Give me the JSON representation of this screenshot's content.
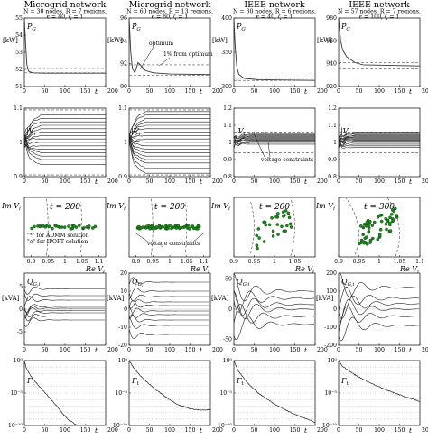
{
  "columns": [
    {
      "title": "Microgrid network",
      "subtitle": "N = 30 nodes, R = 7 regions",
      "subtitle2": "ϵ = 80, ζ = 1"
    },
    {
      "title": "Microgrid network",
      "subtitle": "N = 60 nodes, R = 13 regions",
      "subtitle2": "ϵ = 80, ζ = 1"
    },
    {
      "title": "IEEE network",
      "subtitle": "N = 30 nodes, R = 6 regions",
      "subtitle2": "ϵ = 40, ζ = 1"
    },
    {
      "title": "IEEE network",
      "subtitle": "N = 57 nodes, R = 7 regions",
      "subtitle2": "ϵ = 100, ζ = 1"
    }
  ],
  "row_labels": {
    "pg": "PG",
    "pg_unit": "[kW]",
    "vi": "|Vi|",
    "im": "Im Vi",
    "re": "Re Vi",
    "qg": "QG,i",
    "qg_unit": "[kVA]",
    "gamma": "Γt",
    "t": "t"
  },
  "annotations": {
    "optimum": "optimum",
    "one_percent": "1% from optimum",
    "voltage_constraints": "voltage constraints",
    "admm_line": "\"*\" for ADMM solution",
    "ipopt_line": "\"o\" for IPOPT solution",
    "t200": "t = 200",
    "t300": "t = 300"
  },
  "chart_data": [
    {
      "type": "line",
      "row": "PG",
      "col": 1,
      "xlim": [
        0,
        200
      ],
      "ylim": [
        51,
        55
      ],
      "x_ticks": [
        0,
        50,
        100,
        150,
        200
      ],
      "y_ticks": [
        51,
        52,
        53,
        54,
        55
      ],
      "series": [
        {
          "values": [
            [
              0,
              55
            ],
            [
              3,
              53.5
            ],
            [
              6,
              52.3
            ],
            [
              10,
              51.9
            ],
            [
              20,
              51.8
            ],
            [
              50,
              51.78
            ],
            [
              200,
              51.78
            ]
          ]
        }
      ],
      "reference_lines": [
        51.8,
        52.05
      ]
    },
    {
      "type": "line",
      "row": "PG",
      "col": 2,
      "xlim": [
        0,
        200
      ],
      "ylim": [
        90,
        96
      ],
      "x_ticks": [
        0,
        50,
        100,
        150,
        200
      ],
      "y_ticks": [
        90,
        92,
        94,
        96
      ],
      "series": [
        {
          "values": [
            [
              0,
              96
            ],
            [
              4,
              93
            ],
            [
              8,
              91.6
            ],
            [
              14,
              91.2
            ],
            [
              22,
              92.1
            ],
            [
              30,
              91.8
            ],
            [
              40,
              91.4
            ],
            [
              60,
              91.2
            ],
            [
              100,
              91.1
            ],
            [
              200,
              91.05
            ]
          ]
        }
      ],
      "reference_lines": [
        91.0,
        91.9
      ]
    },
    {
      "type": "line",
      "row": "PG",
      "col": 3,
      "xlim": [
        0,
        200
      ],
      "ylim": [
        300,
        400
      ],
      "x_ticks": [
        0,
        50,
        100,
        150,
        200
      ],
      "y_ticks": [
        300,
        350,
        400
      ],
      "series": [
        {
          "values": [
            [
              0,
              400
            ],
            [
              3,
              360
            ],
            [
              7,
              330
            ],
            [
              12,
              318
            ],
            [
              25,
              312
            ],
            [
              60,
              310
            ],
            [
              200,
              309
            ]
          ]
        }
      ],
      "reference_lines": [
        309,
        312
      ]
    },
    {
      "type": "line",
      "row": "PG",
      "col": 4,
      "xlim": [
        0,
        200
      ],
      "ylim": [
        920,
        980
      ],
      "x_ticks": [
        0,
        50,
        100,
        150,
        200
      ],
      "y_ticks": [
        920,
        940,
        960,
        980
      ],
      "series": [
        {
          "values": [
            [
              0,
              980
            ],
            [
              5,
              960
            ],
            [
              10,
              952
            ],
            [
              20,
              946
            ],
            [
              40,
              941
            ],
            [
              60,
              939
            ],
            [
              200,
              938
            ]
          ]
        }
      ],
      "reference_lines": [
        936,
        941
      ]
    },
    {
      "type": "line",
      "row": "Vi",
      "col": 1,
      "xlim": [
        0,
        200
      ],
      "ylim": [
        0.9,
        1.1
      ],
      "x_ticks": [
        0,
        50,
        100,
        150,
        200
      ],
      "y_ticks": [
        0.9,
        1,
        1.1
      ],
      "series_finals": [
        0.935,
        0.95,
        0.96,
        0.97,
        0.98,
        0.99,
        1.0,
        1.01,
        1.02,
        1.03,
        1.04,
        1.05,
        1.06,
        1.07,
        1.08
      ],
      "constraints": [
        0.905,
        1.095
      ]
    },
    {
      "type": "line",
      "row": "Vi",
      "col": 2,
      "xlim": [
        0,
        200
      ],
      "ylim": [
        0.9,
        1.1
      ],
      "x_ticks": [
        0,
        50,
        100,
        150,
        200
      ],
      "y_ticks": [
        0.9,
        1,
        1.1
      ],
      "series_finals": [
        0.91,
        0.925,
        0.94,
        0.95,
        0.96,
        0.97,
        0.98,
        0.99,
        1.0,
        1.01,
        1.02,
        1.03,
        1.04,
        1.05,
        1.06,
        1.07,
        1.08,
        1.09
      ],
      "constraints": [
        0.905,
        1.095
      ]
    },
    {
      "type": "line",
      "row": "Vi",
      "col": 3,
      "xlim": [
        0,
        200
      ],
      "ylim": [
        0.8,
        1.2
      ],
      "x_ticks": [
        0,
        50,
        100,
        150,
        200
      ],
      "y_ticks": [
        0.8,
        0.9,
        1,
        1.1,
        1.2
      ],
      "series_finals": [
        0.99,
        1.0,
        1.005,
        1.01,
        1.015,
        1.02,
        1.025,
        1.03,
        1.035,
        1.04,
        1.045,
        1.05
      ],
      "constraints": [
        0.94,
        1.06
      ]
    },
    {
      "type": "line",
      "row": "Vi",
      "col": 4,
      "xlim": [
        0,
        200
      ],
      "ylim": [
        0.8,
        1.2
      ],
      "x_ticks": [
        0,
        50,
        100,
        150,
        200
      ],
      "y_ticks": [
        0.8,
        0.9,
        1,
        1.1,
        1.2
      ],
      "series_finals": [
        0.97,
        0.98,
        0.99,
        1.0,
        1.005,
        1.01,
        1.015,
        1.02,
        1.025,
        1.03,
        1.035,
        1.04,
        1.045,
        1.05,
        1.055,
        1.06
      ],
      "constraints": [
        0.94,
        1.06
      ]
    },
    {
      "type": "scatter",
      "row": "ImVi",
      "col": 1,
      "xlim": [
        0.88,
        1.12
      ],
      "ylim": [
        -0.1,
        0.1
      ],
      "x_ticks": [
        0.9,
        0.95,
        1,
        1.05,
        1.1
      ],
      "x_tick_labels": [
        "0.9",
        "0.95",
        "1",
        "1.05",
        "1.1"
      ]
    },
    {
      "type": "scatter",
      "row": "ImVi",
      "col": 2,
      "xlim": [
        0.88,
        1.12
      ],
      "ylim": [
        -0.1,
        0.1
      ],
      "x_ticks": [
        0.9,
        0.95,
        1,
        1.05,
        1.1
      ],
      "x_tick_labels": [
        "0.9",
        "0.95",
        "1",
        "1.05",
        "1.1"
      ]
    },
    {
      "type": "scatter",
      "row": "ImVi",
      "col": 3,
      "xlim": [
        0.9,
        1.1
      ],
      "ylim": [
        -0.15,
        0.15
      ],
      "x_ticks": [
        0.9,
        0.95,
        1,
        1.05
      ],
      "x_tick_labels": [
        "0.9",
        "0.95",
        "1",
        "1.05"
      ]
    },
    {
      "type": "scatter",
      "row": "ImVi",
      "col": 4,
      "xlim": [
        0.9,
        1.1
      ],
      "ylim": [
        -0.15,
        0.25
      ],
      "x_ticks": [
        0.9,
        0.95,
        1,
        1.05,
        1.1
      ],
      "x_tick_labels": [
        "0.9",
        "0.95",
        "1",
        "1.05",
        "1.1"
      ]
    },
    {
      "type": "line",
      "row": "QG",
      "col": 1,
      "xlim": [
        0,
        200
      ],
      "ylim": [
        -8,
        8
      ],
      "x_ticks": [
        0,
        50,
        100,
        150,
        200
      ],
      "y_ticks": [
        -5,
        0,
        5
      ],
      "y_tick_labels": [
        "-5",
        "0",
        "5"
      ],
      "series_finals": [
        4.5,
        3.0,
        2.0,
        0.6,
        0.2,
        -0.3,
        -0.8,
        -1.5,
        -2.4
      ]
    },
    {
      "type": "line",
      "row": "QG",
      "col": 2,
      "xlim": [
        0,
        200
      ],
      "ylim": [
        -20,
        20
      ],
      "x_ticks": [
        0,
        50,
        100,
        150,
        200
      ],
      "y_ticks": [
        -20,
        -10,
        0,
        10,
        20
      ],
      "series_finals": [
        15,
        10,
        7,
        4,
        2,
        -1,
        -3,
        -6,
        -9,
        -14
      ]
    },
    {
      "type": "line",
      "row": "QG",
      "col": 3,
      "xlim": [
        0,
        200
      ],
      "ylim": [
        -60,
        60
      ],
      "x_ticks": [
        0,
        50,
        100,
        150,
        200
      ],
      "y_ticks": [
        -50,
        0,
        50
      ],
      "series_finals": [
        30,
        18,
        8,
        0,
        -12,
        -25
      ]
    },
    {
      "type": "line",
      "row": "QG",
      "col": 4,
      "xlim": [
        0,
        200
      ],
      "ylim": [
        -200,
        200
      ],
      "x_ticks": [
        0,
        50,
        100,
        150,
        200
      ],
      "y_ticks": [
        -200,
        -100,
        0,
        100,
        200
      ],
      "series_finals": [
        120,
        60,
        30,
        0,
        -40,
        -90
      ]
    },
    {
      "type": "line",
      "row": "Gamma",
      "col": 1,
      "xlim": [
        0,
        200
      ],
      "log_y": true,
      "ylim_exp": [
        -10,
        0
      ],
      "x_ticks": [
        0,
        50,
        100,
        150,
        200
      ],
      "y_ticks_exp": [
        -10,
        -5,
        0
      ],
      "y_tick_labels": [
        "10⁻¹⁰",
        "10⁻⁵",
        "10⁰"
      ],
      "series": [
        {
          "values": [
            [
              0,
              0
            ],
            [
              5,
              -1.2
            ],
            [
              20,
              -2.8
            ],
            [
              40,
              -4.2
            ],
            [
              60,
              -5.6
            ],
            [
              80,
              -7.0
            ],
            [
              95,
              -8.2
            ],
            [
              110,
              -9.2
            ],
            [
              130,
              -10
            ]
          ]
        }
      ]
    },
    {
      "type": "line",
      "row": "Gamma",
      "col": 2,
      "xlim": [
        0,
        200
      ],
      "log_y": true,
      "ylim_exp": [
        -10,
        0
      ],
      "x_ticks": [
        0,
        50,
        100,
        150,
        200
      ],
      "y_ticks_exp": [
        -10,
        -5,
        0
      ],
      "y_tick_labels": [
        "10⁻¹⁰",
        "10⁻⁵",
        "10⁰"
      ],
      "series": [
        {
          "values": [
            [
              0,
              0
            ],
            [
              10,
              -1.0
            ],
            [
              30,
              -2.5
            ],
            [
              60,
              -4.2
            ],
            [
              90,
              -5.6
            ],
            [
              120,
              -6.8
            ],
            [
              150,
              -7.4
            ],
            [
              170,
              -7.6
            ],
            [
              200,
              -7.6
            ]
          ]
        }
      ]
    },
    {
      "type": "line",
      "row": "Gamma",
      "col": 3,
      "xlim": [
        0,
        200
      ],
      "log_y": true,
      "ylim_exp": [
        -10,
        0
      ],
      "x_ticks": [
        0,
        50,
        100,
        150,
        200
      ],
      "y_ticks_exp": [
        -10,
        -5,
        0
      ],
      "y_tick_labels": [
        "10⁻¹⁰",
        "10⁻⁵",
        "10⁰"
      ],
      "series": [
        {
          "values": [
            [
              0,
              0
            ],
            [
              10,
              -1.5
            ],
            [
              30,
              -3.2
            ],
            [
              60,
              -5.0
            ],
            [
              100,
              -6.7
            ],
            [
              150,
              -8.3
            ],
            [
              200,
              -9.5
            ]
          ]
        }
      ]
    },
    {
      "type": "line",
      "row": "Gamma",
      "col": 4,
      "xlim": [
        0,
        200
      ],
      "log_y": true,
      "ylim_exp": [
        -10,
        0
      ],
      "x_ticks": [
        0,
        50,
        100,
        150,
        200
      ],
      "y_ticks_exp": [
        -10,
        -5,
        0
      ],
      "y_tick_labels": [
        "10⁻¹⁰",
        "10⁻⁵",
        "10⁰"
      ],
      "series": [
        {
          "values": [
            [
              0,
              0
            ],
            [
              10,
              -0.9
            ],
            [
              40,
              -2.2
            ],
            [
              80,
              -3.5
            ],
            [
              120,
              -4.6
            ],
            [
              160,
              -5.5
            ],
            [
              200,
              -6.3
            ]
          ]
        }
      ]
    }
  ]
}
